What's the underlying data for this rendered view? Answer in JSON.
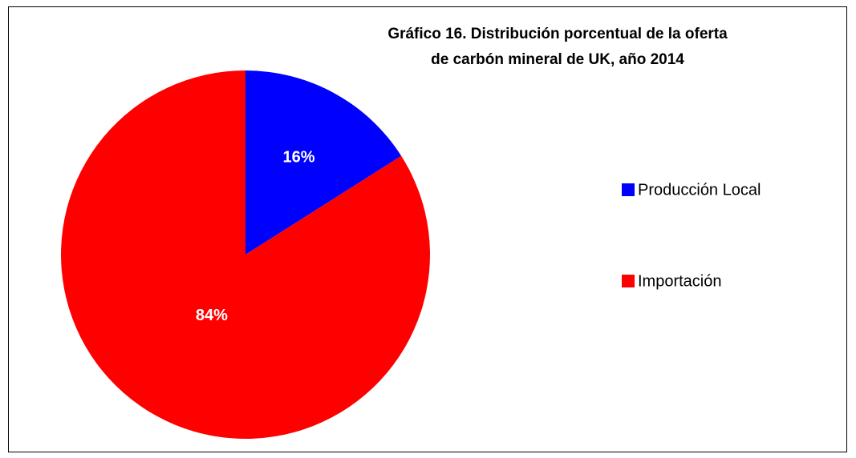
{
  "chart_data": {
    "type": "pie",
    "title": [
      "Gráfico 16. Distribución porcentual de la oferta",
      "de carbón mineral de UK, año 2014"
    ],
    "categories": [
      "Producción Local",
      "Importación"
    ],
    "values": [
      16,
      84
    ],
    "value_labels": [
      "16%",
      "84%"
    ],
    "colors": [
      "#0000ff",
      "#ff0000"
    ],
    "legend": "right"
  }
}
